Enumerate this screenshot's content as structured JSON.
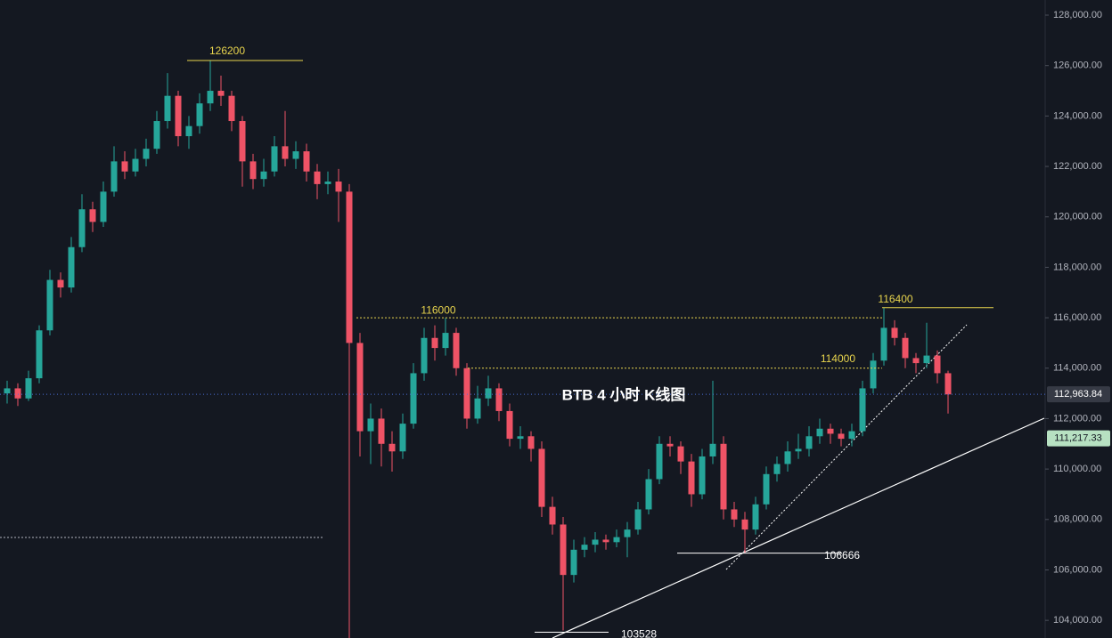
{
  "chart_data": {
    "type": "candlestick",
    "title": "BTB 4 小时 K线图",
    "up_color": "#26a69a",
    "down_color": "#ef5366",
    "ylim": [
      103300,
      128600
    ],
    "yticks": [
      {
        "value": 104000,
        "label": "104,000.00"
      },
      {
        "value": 106000,
        "label": "106,000.00"
      },
      {
        "value": 108000,
        "label": "108,000.00"
      },
      {
        "value": 110000,
        "label": "110,000.00"
      },
      {
        "value": 112000,
        "label": "112,000.00"
      },
      {
        "value": 114000,
        "label": "114,000.00"
      },
      {
        "value": 116000,
        "label": "116,000.00"
      },
      {
        "value": 118000,
        "label": "118,000.00"
      },
      {
        "value": 120000,
        "label": "120,000.00"
      },
      {
        "value": 122000,
        "label": "122,000.00"
      },
      {
        "value": 124000,
        "label": "124,000.00"
      },
      {
        "value": 126000,
        "label": "126,000.00"
      },
      {
        "value": 128000,
        "label": "128,000.00"
      }
    ],
    "levels": [
      {
        "value": 126200,
        "color": "#e8d44d"
      },
      {
        "value": 116000,
        "color": "#e8d44d"
      },
      {
        "value": 114000,
        "color": "#e8d44d"
      },
      {
        "value": 116400,
        "color": "#e8d44d"
      },
      {
        "value": 106666,
        "color": "#ffffff"
      },
      {
        "value": 103528,
        "color": "#ffffff"
      }
    ],
    "price_tags": [
      {
        "value": 112963.84,
        "label": "112,963.84",
        "color": "#363a45",
        "text_color": "#ffffff"
      },
      {
        "value": 111217.33,
        "label": "111,217.33",
        "color": "#b7e1c2",
        "text_color": "#131722"
      }
    ],
    "ohlc": [
      [
        113000,
        113500,
        112600,
        113200
      ],
      [
        113200,
        113400,
        112500,
        112800
      ],
      [
        112800,
        113900,
        112700,
        113600
      ],
      [
        113600,
        115700,
        113400,
        115500
      ],
      [
        115500,
        117900,
        115300,
        117500
      ],
      [
        117500,
        117800,
        116800,
        117200
      ],
      [
        117200,
        119200,
        117000,
        118800
      ],
      [
        118800,
        120900,
        118600,
        120300
      ],
      [
        120300,
        120600,
        119400,
        119800
      ],
      [
        119800,
        121400,
        119600,
        121000
      ],
      [
        121000,
        122800,
        120800,
        122200
      ],
      [
        122200,
        122600,
        121500,
        121800
      ],
      [
        121800,
        122700,
        121600,
        122300
      ],
      [
        122300,
        123100,
        122000,
        122700
      ],
      [
        122700,
        124200,
        122500,
        123800
      ],
      [
        123800,
        125700,
        123500,
        124800
      ],
      [
        124800,
        125000,
        122800,
        123200
      ],
      [
        123200,
        124000,
        122700,
        123600
      ],
      [
        123600,
        124900,
        123300,
        124500
      ],
      [
        124500,
        126200,
        124200,
        125000
      ],
      [
        125000,
        125600,
        124400,
        124800
      ],
      [
        124800,
        125000,
        123400,
        123800
      ],
      [
        123800,
        124000,
        121200,
        122200
      ],
      [
        122200,
        122500,
        121100,
        121500
      ],
      [
        121500,
        122300,
        121200,
        121800
      ],
      [
        121800,
        123200,
        121600,
        122800
      ],
      [
        122800,
        124200,
        122000,
        122300
      ],
      [
        122300,
        123000,
        121900,
        122600
      ],
      [
        122600,
        122900,
        121400,
        121800
      ],
      [
        121800,
        122100,
        120700,
        121300
      ],
      [
        121300,
        121800,
        120900,
        121400
      ],
      [
        121400,
        121900,
        119800,
        121000
      ],
      [
        121000,
        121300,
        103300,
        115000
      ],
      [
        115000,
        115400,
        110500,
        111500
      ],
      [
        111500,
        112600,
        110200,
        112000
      ],
      [
        112000,
        112400,
        110100,
        111000
      ],
      [
        111000,
        111500,
        109900,
        110700
      ],
      [
        110700,
        112200,
        110400,
        111800
      ],
      [
        111800,
        114200,
        111600,
        113800
      ],
      [
        113800,
        115600,
        113500,
        115200
      ],
      [
        115200,
        115700,
        114300,
        114800
      ],
      [
        114800,
        116000,
        114500,
        115400
      ],
      [
        115400,
        115600,
        113700,
        114000
      ],
      [
        114000,
        114200,
        111600,
        112000
      ],
      [
        112000,
        113300,
        111800,
        112800
      ],
      [
        112800,
        113700,
        112500,
        113200
      ],
      [
        113200,
        113400,
        111900,
        112300
      ],
      [
        112300,
        112600,
        110900,
        111200
      ],
      [
        111200,
        111700,
        110800,
        111300
      ],
      [
        111300,
        111500,
        110300,
        110800
      ],
      [
        110800,
        111100,
        108100,
        108500
      ],
      [
        108500,
        108900,
        107400,
        107800
      ],
      [
        107800,
        108100,
        103600,
        105800
      ],
      [
        105800,
        107200,
        105500,
        106800
      ],
      [
        106800,
        107300,
        106500,
        107000
      ],
      [
        107000,
        107500,
        106700,
        107200
      ],
      [
        107200,
        107400,
        106800,
        107100
      ],
      [
        107100,
        107600,
        106900,
        107300
      ],
      [
        107300,
        107900,
        106500,
        107600
      ],
      [
        107600,
        108700,
        107400,
        108400
      ],
      [
        108400,
        110000,
        108200,
        109600
      ],
      [
        109600,
        111300,
        109400,
        111000
      ],
      [
        111000,
        111300,
        110500,
        110900
      ],
      [
        110900,
        111100,
        109800,
        110300
      ],
      [
        110300,
        110600,
        108500,
        109000
      ],
      [
        109000,
        110800,
        108800,
        110500
      ],
      [
        110500,
        113500,
        110200,
        111000
      ],
      [
        111000,
        111300,
        108000,
        108400
      ],
      [
        108400,
        108700,
        107700,
        108000
      ],
      [
        108000,
        108300,
        106666,
        107600
      ],
      [
        107600,
        108900,
        107400,
        108600
      ],
      [
        108600,
        110100,
        108400,
        109800
      ],
      [
        109800,
        110500,
        109500,
        110200
      ],
      [
        110200,
        111100,
        109900,
        110700
      ],
      [
        110700,
        111400,
        110400,
        110800
      ],
      [
        110800,
        111700,
        110500,
        111300
      ],
      [
        111300,
        112000,
        111000,
        111600
      ],
      [
        111600,
        111800,
        111000,
        111400
      ],
      [
        111400,
        111600,
        110900,
        111200
      ],
      [
        111200,
        111800,
        110900,
        111500
      ],
      [
        111500,
        113500,
        111300,
        113200
      ],
      [
        113200,
        114600,
        113000,
        114300
      ],
      [
        114300,
        116400,
        114100,
        115600
      ],
      [
        115600,
        115900,
        114900,
        115200
      ],
      [
        115200,
        115400,
        114000,
        114400
      ],
      [
        114400,
        114600,
        113800,
        114200
      ],
      [
        114200,
        115800,
        114000,
        114500
      ],
      [
        114500,
        114700,
        113400,
        113800
      ],
      [
        113800,
        113900,
        112200,
        112960
      ]
    ]
  }
}
